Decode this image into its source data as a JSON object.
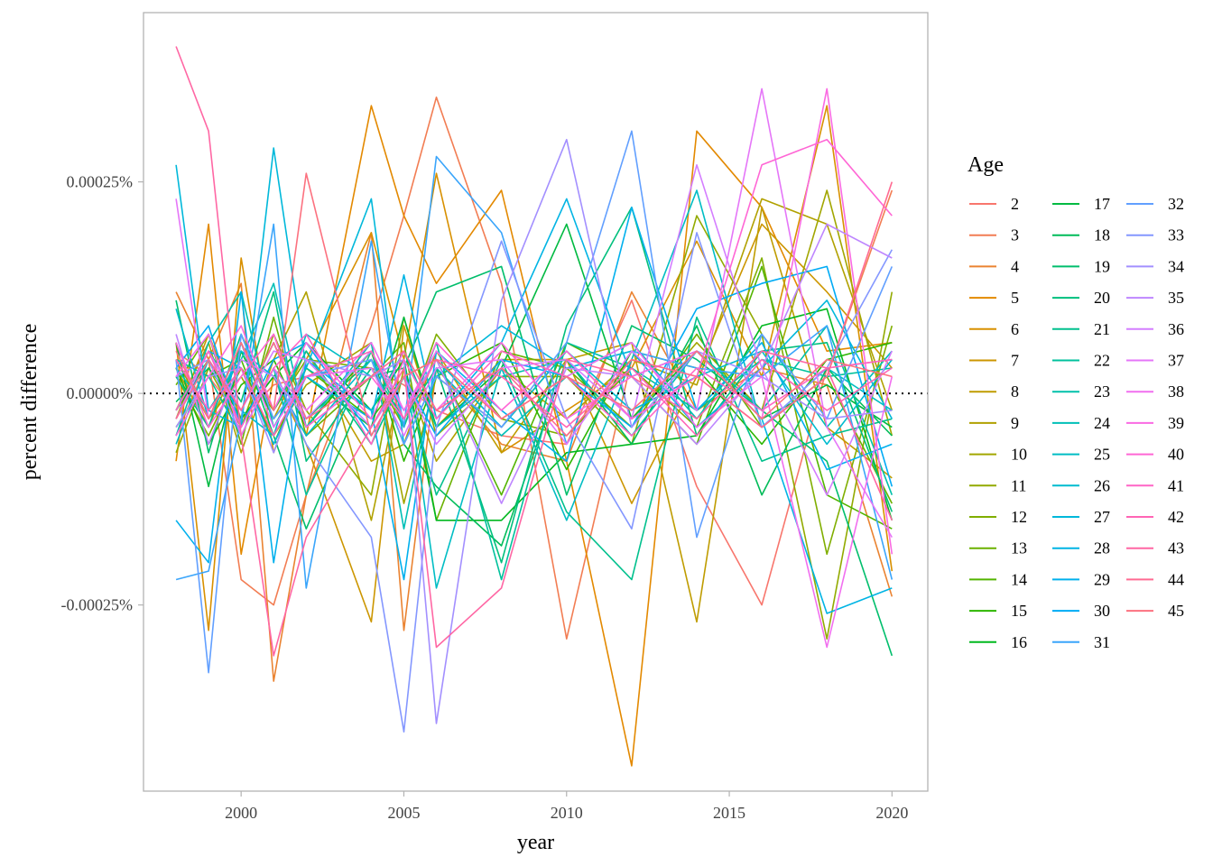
{
  "chart_data": {
    "type": "line",
    "title": "",
    "xlabel": "year",
    "ylabel": "percent difference",
    "xlim": [
      1997.0,
      2021.1
    ],
    "ylim": [
      -0.00047,
      0.00045
    ],
    "x_ticks": [
      2000,
      2005,
      2010,
      2015,
      2020
    ],
    "y_ticks": [
      0.00025,
      0.0,
      -0.00025
    ],
    "y_tick_labels": [
      "0.00025%",
      "0.00000%",
      "-0.00025%"
    ],
    "reference_line": {
      "y": 0,
      "style": "dotted",
      "color": "#000000"
    },
    "grid": false,
    "legend": {
      "title": "Age",
      "position": "right",
      "columns": 3
    },
    "x": [
      1998,
      1999,
      2000,
      2001,
      2002,
      2004,
      2005,
      2006,
      2008,
      2010,
      2012,
      2014,
      2016,
      2018,
      2020
    ],
    "series": [
      {
        "name": "2",
        "color": "#F8766D",
        "values": [
          5e-05,
          2e-05,
          -3e-05,
          1e-05,
          2e-05,
          3e-05,
          1e-05,
          -2e-05,
          -5e-05,
          -6e-05,
          0.00011,
          -0.00011,
          -0.00025,
          3e-05,
          4e-05
        ]
      },
      {
        "name": "3",
        "color": "#F27D53",
        "values": [
          -5e-05,
          4e-05,
          -0.00022,
          -0.00025,
          -0.00012,
          8e-05,
          0.00021,
          0.00035,
          0.00013,
          -0.00029,
          4e-05,
          2e-05,
          -4e-05,
          2e-05,
          0.00024
        ]
      },
      {
        "name": "4",
        "color": "#EA8331",
        "values": [
          0.00012,
          4e-05,
          0.00013,
          -0.00034,
          -0.00012,
          0.00019,
          -0.00028,
          3e-05,
          -6e-05,
          -8e-05,
          0.00012,
          -2e-05,
          3e-05,
          1e-05,
          -0.00024
        ]
      },
      {
        "name": "5",
        "color": "#E38900",
        "values": [
          -8e-05,
          0.0002,
          -0.00019,
          2e-05,
          -5e-05,
          0.00034,
          0.00021,
          0.00013,
          0.00024,
          -8e-05,
          -0.00044,
          0.00031,
          0.00022,
          5e-05,
          6e-05
        ]
      },
      {
        "name": "6",
        "color": "#D89000",
        "values": [
          6e-05,
          -0.00028,
          0.00016,
          -7e-05,
          4e-05,
          0.00019,
          4e-05,
          0.00026,
          -7e-05,
          -2e-05,
          3e-05,
          0.00018,
          2e-05,
          0.00034,
          -0.00021
        ]
      },
      {
        "name": "7",
        "color": "#CC9600",
        "values": [
          -3e-05,
          7e-05,
          -3e-05,
          2e-05,
          -6e-05,
          -0.00027,
          8e-05,
          -4e-05,
          4e-05,
          4e-05,
          -0.00013,
          2e-05,
          0.0002,
          0.00012,
          3e-05
        ]
      },
      {
        "name": "8",
        "color": "#BF9C00",
        "values": [
          3e-05,
          -4e-05,
          5e-05,
          -3e-05,
          5e-05,
          -8e-05,
          -6e-05,
          5e-05,
          -7e-05,
          4e-05,
          6e-05,
          -0.00027,
          0.00022,
          -4e-05,
          -0.0001
        ]
      },
      {
        "name": "9",
        "color": "#B1A100",
        "values": [
          -2e-05,
          6e-05,
          -7e-05,
          4e-05,
          0.00012,
          -0.00015,
          3e-05,
          -8e-05,
          3e-05,
          -3e-05,
          4e-05,
          1e-05,
          0.00023,
          0.0002,
          -2e-05
        ]
      },
      {
        "name": "10",
        "color": "#A2A600",
        "values": [
          4e-05,
          -3e-05,
          2e-05,
          -5e-05,
          1e-05,
          6e-05,
          -0.00013,
          2e-05,
          -4e-05,
          5e-05,
          -3e-05,
          6e-05,
          -2e-05,
          0.00024,
          -5e-05
        ]
      },
      {
        "name": "11",
        "color": "#92AA00",
        "values": [
          -7e-05,
          3e-05,
          -4e-05,
          7e-05,
          -2e-05,
          -0.00012,
          9e-05,
          -5e-05,
          2e-05,
          2e-05,
          -6e-05,
          0.00021,
          7e-05,
          -0.00029,
          0.00012
        ]
      },
      {
        "name": "12",
        "color": "#80AE00",
        "values": [
          2e-05,
          -5e-05,
          3e-05,
          -2e-05,
          4e-05,
          3e-05,
          -4e-05,
          7e-05,
          -3e-05,
          -5e-05,
          3e-05,
          -4e-05,
          0.00016,
          -0.00019,
          8e-05
        ]
      },
      {
        "name": "13",
        "color": "#6BB100",
        "values": [
          1e-05,
          7e-05,
          -6e-05,
          9e-05,
          -5e-05,
          2e-05,
          6e-05,
          -0.00015,
          5e-05,
          3e-05,
          -4e-05,
          7e-05,
          -4e-05,
          2e-05,
          -0.00013
        ]
      },
      {
        "name": "14",
        "color": "#53B400",
        "values": [
          -4e-05,
          2e-05,
          4e-05,
          -6e-05,
          3e-05,
          -3e-05,
          2e-05,
          4e-05,
          -0.00012,
          6e-05,
          2e-05,
          -6e-05,
          0.00015,
          -0.00012,
          -0.00016
        ]
      },
      {
        "name": "15",
        "color": "#2CB600",
        "values": [
          3e-05,
          -6e-05,
          1e-05,
          4e-05,
          -4e-05,
          5e-05,
          -8e-05,
          2e-05,
          6e-05,
          -9e-05,
          5e-05,
          3e-05,
          -6e-05,
          4e-05,
          6e-05
        ]
      },
      {
        "name": "16",
        "color": "#00B81F",
        "values": [
          -2e-05,
          4e-05,
          -3e-05,
          2e-05,
          6e-05,
          -2e-05,
          4e-05,
          -0.00015,
          -0.00015,
          -7e-05,
          -6e-05,
          -5e-05,
          8e-05,
          0.0001,
          -0.00015
        ]
      },
      {
        "name": "17",
        "color": "#00BA42",
        "values": [
          6e-05,
          -0.00011,
          5e-05,
          -3e-05,
          2e-05,
          -4e-05,
          9e-05,
          -4e-05,
          3e-05,
          0.0002,
          -3e-05,
          5e-05,
          -3e-05,
          1e-05,
          -4e-05
        ]
      },
      {
        "name": "18",
        "color": "#00BC59",
        "values": [
          -1e-05,
          3e-05,
          -2e-05,
          6e-05,
          -3e-05,
          4e-05,
          -6e-05,
          -0.00011,
          -0.00018,
          4e-05,
          -6e-05,
          8e-05,
          -0.00012,
          3e-05,
          -5e-05
        ]
      },
      {
        "name": "19",
        "color": "#00BE6C",
        "values": [
          0.00011,
          -7e-05,
          6e-05,
          -5e-05,
          -0.00016,
          2e-05,
          3e-05,
          0.00012,
          0.00015,
          -0.00012,
          8e-05,
          4e-05,
          -2e-05,
          -8e-05,
          -0.00031
        ]
      },
      {
        "name": "20",
        "color": "#00BF7D",
        "values": [
          -3e-05,
          5e-05,
          -1e-05,
          0.00012,
          -8e-05,
          3e-05,
          -3e-05,
          3e-05,
          -0.0002,
          8e-05,
          0.00022,
          -5e-05,
          5e-05,
          6e-05,
          -0.00014
        ]
      },
      {
        "name": "21",
        "color": "#00C08D",
        "values": [
          2e-05,
          -4e-05,
          7e-05,
          -2e-05,
          5e-05,
          -6e-05,
          2e-05,
          -0.00012,
          4e-05,
          -0.00014,
          -0.00022,
          9e-05,
          -8e-05,
          -5e-05,
          -3e-05
        ]
      },
      {
        "name": "22",
        "color": "#00C19C",
        "values": [
          4e-05,
          2e-05,
          -5e-05,
          3e-05,
          -0.00012,
          5e-05,
          -4e-05,
          6e-05,
          -0.00022,
          6e-05,
          3e-05,
          -2e-05,
          4e-05,
          2e-05,
          3e-05
        ]
      },
      {
        "name": "23",
        "color": "#00C0AA",
        "values": [
          -5e-05,
          6e-05,
          0.00012,
          -4e-05,
          3e-05,
          -2e-05,
          5e-05,
          -4e-05,
          2e-05,
          4e-05,
          -5e-05,
          5e-05,
          -2e-05,
          8e-05,
          -0.00012
        ]
      },
      {
        "name": "24",
        "color": "#00BFB7",
        "values": [
          3e-05,
          -2e-05,
          4e-05,
          0.00013,
          -4e-05,
          6e-05,
          -0.00016,
          3e-05,
          -5e-05,
          2e-05,
          6e-05,
          -3e-05,
          7e-05,
          -4e-05,
          5e-05
        ]
      },
      {
        "name": "25",
        "color": "#00BDC4",
        "values": [
          -6e-05,
          4e-05,
          -2e-05,
          -5e-05,
          7e-05,
          2e-05,
          4e-05,
          -0.00023,
          3e-05,
          -0.00015,
          4e-05,
          0.00024,
          -4e-05,
          3e-05,
          -2e-05
        ]
      },
      {
        "name": "26",
        "color": "#00BBCF",
        "values": [
          0.0001,
          -3e-05,
          5e-05,
          2e-05,
          -5e-05,
          4e-05,
          -2e-05,
          4e-05,
          -4e-05,
          5e-05,
          -2e-05,
          2e-05,
          5e-05,
          -6e-05,
          4e-05
        ]
      },
      {
        "name": "27",
        "color": "#00B8DA",
        "values": [
          0.00027,
          -2e-05,
          -4e-05,
          0.00029,
          3e-05,
          0.00023,
          -6e-05,
          2e-05,
          8e-05,
          3e-05,
          5e-05,
          -4e-05,
          3e-05,
          0.00011,
          -3e-05
        ]
      },
      {
        "name": "28",
        "color": "#00B4E4",
        "values": [
          -2e-05,
          5e-05,
          3e-05,
          -6e-05,
          2e-05,
          -3e-05,
          0.00014,
          -3e-05,
          6e-05,
          0.00023,
          2e-05,
          5e-05,
          -3e-05,
          -0.00026,
          -0.00023
        ]
      },
      {
        "name": "29",
        "color": "#00B0ED",
        "values": [
          -0.00015,
          -0.0002,
          0.00012,
          -0.0002,
          4e-05,
          -2e-05,
          -0.00022,
          5e-05,
          -2e-05,
          -8e-05,
          0.00022,
          -2e-05,
          6e-05,
          -9e-05,
          -6e-05
        ]
      },
      {
        "name": "30",
        "color": "#00ABF5",
        "values": [
          3e-05,
          8e-05,
          -4e-05,
          4e-05,
          6e-05,
          -5e-05,
          2e-05,
          -5e-05,
          4e-05,
          2e-05,
          -4e-05,
          0.0001,
          0.00013,
          0.00015,
          -0.00011
        ]
      },
      {
        "name": "31",
        "color": "#3AA5FB",
        "values": [
          -0.00022,
          -0.00021,
          -3e-05,
          0.0002,
          -0.00023,
          0.00018,
          -4e-05,
          0.00028,
          0.00019,
          -6e-05,
          5e-05,
          3e-05,
          2e-05,
          8e-05,
          -0.00022
        ]
      },
      {
        "name": "32",
        "color": "#619FFF",
        "values": [
          4e-05,
          -0.00033,
          7e-05,
          -3e-05,
          2e-05,
          4e-05,
          -6e-05,
          2e-05,
          -4e-05,
          6e-05,
          0.00031,
          -0.00017,
          7e-05,
          -3e-05,
          0.00015
        ]
      },
      {
        "name": "33",
        "color": "#8497FF",
        "values": [
          2e-05,
          4e-05,
          -5e-05,
          3e-05,
          -6e-05,
          -0.00017,
          -0.0004,
          -4e-05,
          0.00018,
          -3e-05,
          -0.00016,
          0.00019,
          -4e-05,
          3e-05,
          0.00017
        ]
      },
      {
        "name": "34",
        "color": "#A38FFF",
        "values": [
          -4e-05,
          2e-05,
          3e-05,
          -7e-05,
          4e-05,
          2e-05,
          4e-05,
          -0.00039,
          0.00011,
          0.0003,
          -4e-05,
          5e-05,
          2e-05,
          -3e-05,
          -2e-05
        ]
      },
      {
        "name": "35",
        "color": "#BE86FF",
        "values": [
          7e-05,
          -6e-05,
          4e-05,
          2e-05,
          -3e-05,
          5e-05,
          -2e-05,
          4e-05,
          -0.00013,
          3e-05,
          2e-05,
          -6e-05,
          3e-05,
          0.0002,
          0.00016
        ]
      },
      {
        "name": "36",
        "color": "#D47EFF",
        "values": [
          -3e-05,
          5e-05,
          -2e-05,
          5e-05,
          4e-05,
          -4e-05,
          2e-05,
          -6e-05,
          3e-05,
          4e-05,
          -3e-05,
          0.00027,
          3e-05,
          -0.00012,
          5e-05
        ]
      },
      {
        "name": "37",
        "color": "#E576F8",
        "values": [
          0.00023,
          -3e-05,
          6e-05,
          -4e-05,
          2e-05,
          3e-05,
          -5e-05,
          3e-05,
          4e-05,
          -6e-05,
          5e-05,
          -2e-05,
          0.00036,
          -4e-05,
          -0.00017
        ]
      },
      {
        "name": "38",
        "color": "#F16FEF",
        "values": [
          2e-05,
          7e-05,
          -5e-05,
          3e-05,
          -2e-05,
          6e-05,
          -2e-05,
          5e-05,
          -3e-05,
          2e-05,
          6e-05,
          -4e-05,
          2e-05,
          -0.0003,
          2e-05
        ]
      },
      {
        "name": "39",
        "color": "#FA6AE2",
        "values": [
          -5e-05,
          2e-05,
          8e-05,
          -2e-05,
          6e-05,
          -3e-05,
          5e-05,
          -2e-05,
          6e-05,
          -3e-05,
          2e-05,
          5e-05,
          -3e-05,
          0.00036,
          -0.00019
        ]
      },
      {
        "name": "40",
        "color": "#FF66D5",
        "values": [
          6e-05,
          -4e-05,
          2e-05,
          7e-05,
          -4e-05,
          2e-05,
          -3e-05,
          6e-05,
          -2e-05,
          5e-05,
          -3e-05,
          2e-05,
          0.00027,
          0.0003,
          0.00021
        ]
      },
      {
        "name": "41",
        "color": "#FF65C6",
        "values": [
          -2e-05,
          5e-05,
          -4e-05,
          3e-05,
          7e-05,
          -6e-05,
          4e-05,
          -3e-05,
          5e-05,
          2e-05,
          -5e-05,
          3e-05,
          -2e-05,
          3e-05,
          4e-05
        ]
      },
      {
        "name": "42",
        "color": "#FF65B5",
        "values": [
          4e-05,
          -2e-05,
          3e-05,
          -5e-05,
          2e-05,
          5e-05,
          -3e-05,
          4e-05,
          2e-05,
          -4e-05,
          3e-05,
          -5e-05,
          4e-05,
          -2e-05,
          3e-05
        ]
      },
      {
        "name": "43",
        "color": "#FF67A4",
        "values": [
          0.00041,
          0.00031,
          -5e-05,
          -0.00031,
          -0.00017,
          -4e-05,
          3e-05,
          -0.0003,
          -0.00023,
          4e-05,
          2e-05,
          -3e-05,
          5e-05,
          3e-05,
          -0.00015
        ]
      },
      {
        "name": "44",
        "color": "#FF6A92",
        "values": [
          -3e-05,
          4e-05,
          -2e-05,
          6e-05,
          -3e-05,
          2e-05,
          5e-05,
          -2e-05,
          3e-05,
          -5e-05,
          4e-05,
          2e-05,
          -4e-05,
          2e-05,
          0.00025
        ]
      },
      {
        "name": "45",
        "color": "#FC717F",
        "values": [
          5e-05,
          -3e-05,
          6e-05,
          -2e-05,
          0.00026,
          -5e-05,
          2e-05,
          4e-05,
          -3e-05,
          2e-05,
          -2e-05,
          5e-05,
          -3e-05,
          4e-05,
          2e-05
        ]
      }
    ]
  }
}
